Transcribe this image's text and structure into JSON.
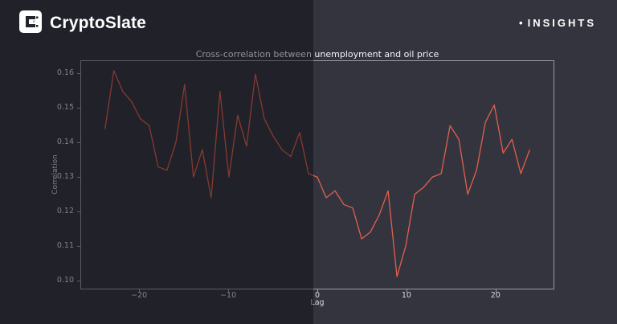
{
  "header": {
    "brand": "CryptoSlate",
    "bullet": "•",
    "insights_label": "INSIGHTS"
  },
  "chart_data": {
    "type": "line",
    "title": "Cross-correlation between unemployment and oil price",
    "xlabel": "Lag",
    "ylabel": "Correlation",
    "x": [
      -24,
      -23,
      -22,
      -21,
      -20,
      -19,
      -18,
      -17,
      -16,
      -15,
      -14,
      -13,
      -12,
      -11,
      -10,
      -9,
      -8,
      -7,
      -6,
      -5,
      -4,
      -3,
      -2,
      -1,
      0,
      1,
      2,
      3,
      4,
      5,
      6,
      7,
      8,
      9,
      10,
      11,
      12,
      13,
      14,
      15,
      16,
      17,
      18,
      19,
      20,
      21,
      22,
      23,
      24
    ],
    "values": [
      0.144,
      0.161,
      0.155,
      0.152,
      0.147,
      0.145,
      0.133,
      0.132,
      0.14,
      0.157,
      0.13,
      0.138,
      0.124,
      0.155,
      0.13,
      0.148,
      0.139,
      0.16,
      0.147,
      0.142,
      0.138,
      0.136,
      0.143,
      0.131,
      0.13,
      0.124,
      0.126,
      0.122,
      0.121,
      0.112,
      0.114,
      0.119,
      0.126,
      0.101,
      0.11,
      0.125,
      0.127,
      0.13,
      0.131,
      0.145,
      0.141,
      0.125,
      0.132,
      0.146,
      0.151,
      0.137,
      0.141,
      0.131,
      0.138
    ],
    "xlim": [
      -26.6,
      26.6
    ],
    "ylim": [
      0.0975,
      0.1638
    ],
    "xticks": [
      -20,
      -10,
      0,
      10,
      20
    ],
    "yticks": [
      0.1,
      0.11,
      0.12,
      0.13,
      0.14,
      0.15,
      0.16
    ],
    "line_color": "#e2604c",
    "grid": false,
    "legend": "none"
  },
  "colors": {
    "background": "#34343f",
    "overlay": "rgba(6,6,12,0.42)",
    "axis": "#9b9ba5",
    "text": "#d8d8de",
    "title_text": "#f2f2f6"
  }
}
